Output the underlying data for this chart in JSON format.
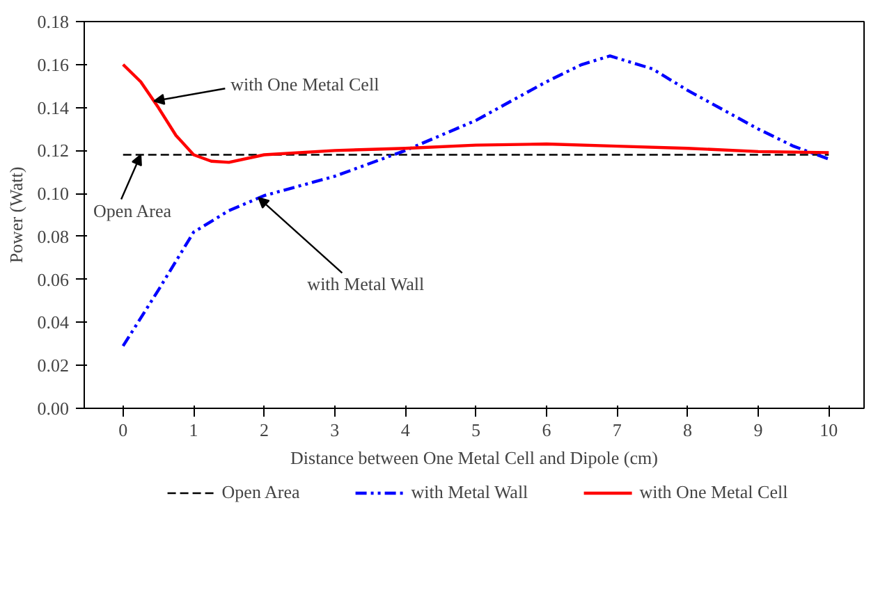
{
  "chart_data": {
    "type": "line",
    "xlabel": "Distance between One Metal Cell and Dipole (cm)",
    "ylabel": "Power (Watt)",
    "xlim": [
      -0.55,
      10.5
    ],
    "xticks": [
      0,
      1,
      2,
      3,
      4,
      5,
      6,
      7,
      8,
      9,
      10
    ],
    "ylim": [
      0,
      0.18
    ],
    "yticks": [
      {
        "value": 0,
        "label": "0.00"
      },
      {
        "value": 0.02,
        "label": "0.02"
      },
      {
        "value": 0.04,
        "label": "0.04"
      },
      {
        "value": 0.06,
        "label": "0.06"
      },
      {
        "value": 0.08,
        "label": "0.08"
      },
      {
        "value": 0.1,
        "label": "0.10"
      },
      {
        "value": 0.12,
        "label": "0.12"
      },
      {
        "value": 0.14,
        "label": "0.14"
      },
      {
        "value": 0.16,
        "label": "0.16"
      },
      {
        "value": 0.18,
        "label": "0.18"
      }
    ],
    "grid": false,
    "legend": "bottom",
    "marker": "none",
    "series": [
      {
        "name": "Open Area",
        "color": "#000000",
        "line_style": "dashed",
        "x": [
          0,
          10
        ],
        "values": [
          0.118,
          0.118
        ]
      },
      {
        "name": "with Metal Wall",
        "color": "#0000ff",
        "line_style": "dashdotdot",
        "x": [
          0,
          0.5,
          1,
          1.5,
          2,
          3,
          4,
          5,
          6,
          6.5,
          6.9,
          7.5,
          8,
          9,
          9.5,
          10
        ],
        "values": [
          0.029,
          0.055,
          0.082,
          0.092,
          0.099,
          0.108,
          0.12,
          0.134,
          0.152,
          0.16,
          0.164,
          0.158,
          0.148,
          0.13,
          0.122,
          0.116
        ]
      },
      {
        "name": "with One Metal Cell",
        "color": "#ff0000",
        "line_style": "solid",
        "x": [
          0,
          0.25,
          0.5,
          0.75,
          1,
          1.25,
          1.5,
          2,
          3,
          4,
          5,
          6,
          7,
          8,
          9,
          10
        ],
        "values": [
          0.16,
          0.152,
          0.14,
          0.127,
          0.118,
          0.115,
          0.1145,
          0.118,
          0.12,
          0.121,
          0.1225,
          0.123,
          0.122,
          0.121,
          0.1195,
          0.119
        ]
      }
    ],
    "annotations": [
      {
        "text": "with One Metal Cell",
        "x": 0.44,
        "y": 0.143
      },
      {
        "text": "Open Area",
        "x": 0.25,
        "y": 0.118
      },
      {
        "text": "with Metal Wall",
        "x": 1.92,
        "y": 0.098
      }
    ]
  }
}
